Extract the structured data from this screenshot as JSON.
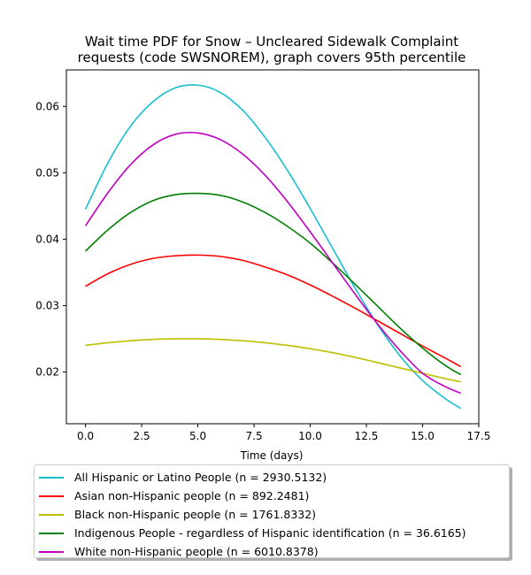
{
  "chart_data": {
    "type": "line",
    "title_line1": "Wait time PDF for Snow – Uncleared Sidewalk Complaint",
    "title_line2": "requests (code SWSNOREM), graph covers 95th percentile",
    "xlabel": "Time (days)",
    "ylabel": "",
    "xlim": [
      -0.85,
      17.5
    ],
    "ylim": [
      0.0122,
      0.0655
    ],
    "xticks": [
      0.0,
      2.5,
      5.0,
      7.5,
      10.0,
      12.5,
      15.0,
      17.5
    ],
    "xtick_labels": [
      "0.0",
      "2.5",
      "5.0",
      "7.5",
      "10.0",
      "12.5",
      "15.0",
      "17.5"
    ],
    "yticks": [
      0.02,
      0.03,
      0.04,
      0.05,
      0.06
    ],
    "ytick_labels": [
      "0.02",
      "0.03",
      "0.04",
      "0.05",
      "0.06"
    ],
    "grid": false,
    "legend_position": "below plot",
    "x": [
      0,
      1,
      2,
      3,
      4,
      5,
      6,
      7,
      8,
      9,
      10,
      11,
      12,
      13,
      14,
      15,
      16,
      16.7
    ],
    "series": [
      {
        "name": "All Hispanic or Latino People (n = 2930.5132)",
        "color": "#17becf",
        "values": [
          0.0445,
          0.0515,
          0.057,
          0.0607,
          0.0628,
          0.0632,
          0.0621,
          0.0594,
          0.0553,
          0.0503,
          0.0446,
          0.0386,
          0.0326,
          0.0271,
          0.0224,
          0.0187,
          0.016,
          0.0145
        ]
      },
      {
        "name": "Asian non-Hispanic people (n = 892.2481)",
        "color": "#ff0000",
        "values": [
          0.0329,
          0.0348,
          0.0362,
          0.0371,
          0.0375,
          0.0376,
          0.0374,
          0.0368,
          0.0358,
          0.0346,
          0.0331,
          0.0314,
          0.0296,
          0.0277,
          0.0258,
          0.0239,
          0.0221,
          0.0208
        ]
      },
      {
        "name": "Black non-Hispanic people (n = 1761.8332)",
        "color": "#bfbf00",
        "values": [
          0.024,
          0.0244,
          0.0247,
          0.0249,
          0.025,
          0.025,
          0.0249,
          0.0247,
          0.0244,
          0.024,
          0.0235,
          0.0229,
          0.0222,
          0.0214,
          0.0206,
          0.0198,
          0.019,
          0.0185
        ]
      },
      {
        "name": "Indigenous People - regardless of Hispanic identification (n = 36.6165)",
        "color": "#008000",
        "values": [
          0.0382,
          0.0414,
          0.044,
          0.0458,
          0.0467,
          0.0469,
          0.0466,
          0.0456,
          0.044,
          0.0419,
          0.0394,
          0.0364,
          0.0332,
          0.0299,
          0.0266,
          0.0236,
          0.021,
          0.0196
        ]
      },
      {
        "name": "White non-Hispanic people (n = 6010.8378)",
        "color": "#bf00bf",
        "values": [
          0.042,
          0.047,
          0.0512,
          0.0542,
          0.0558,
          0.056,
          0.055,
          0.0528,
          0.0496,
          0.0456,
          0.0411,
          0.0364,
          0.0317,
          0.0272,
          0.0232,
          0.0198,
          0.0178,
          0.0168
        ]
      }
    ]
  }
}
